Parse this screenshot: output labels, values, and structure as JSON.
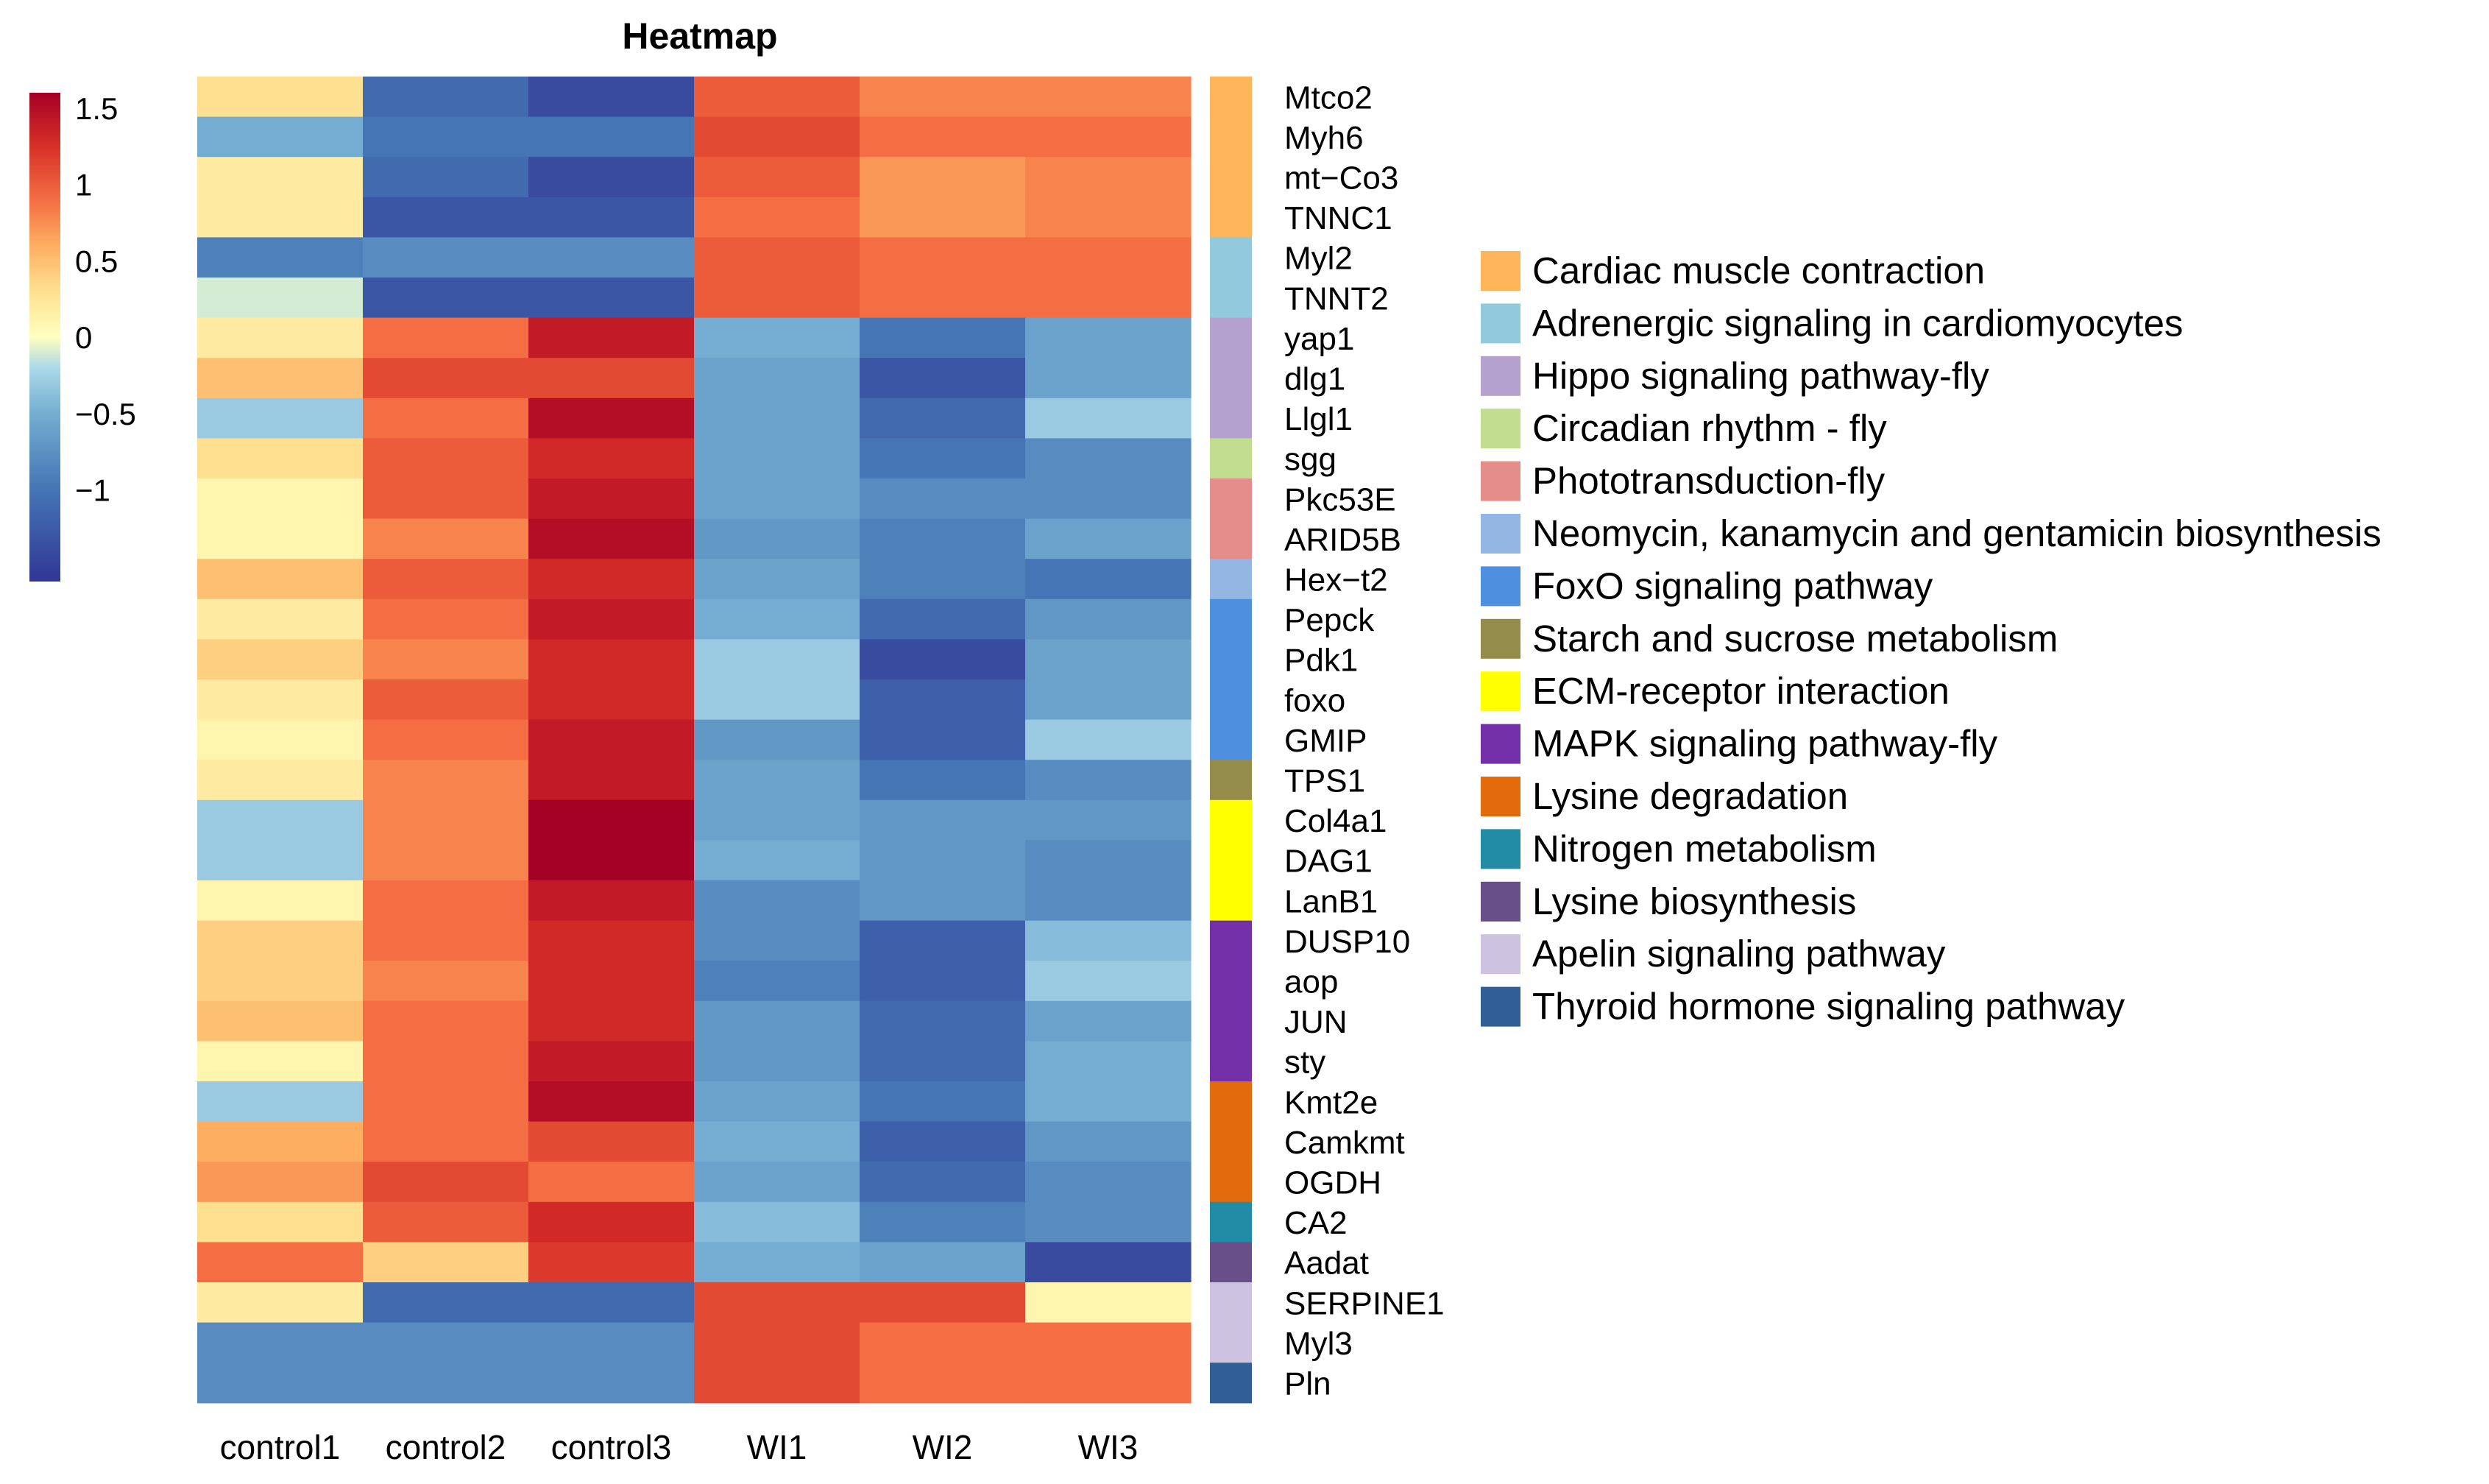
{
  "chart_data": {
    "type": "heatmap",
    "title": "Heatmap",
    "columns": [
      "control1",
      "control2",
      "control3",
      "WI1",
      "WI2",
      "WI3"
    ],
    "rows": [
      "Mtco2",
      "Myh6",
      "mt−Co3",
      "TNNC1",
      "Myl2",
      "TNNT2",
      "yap1",
      "dlg1",
      "Llgl1",
      "sgg",
      "Pkc53E",
      "ARID5B",
      "Hex−t2",
      "Pepck",
      "Pdk1",
      "foxo",
      "GMIP",
      "TPS1",
      "Col4a1",
      "DAG1",
      "LanB1",
      "DUSP10",
      "aop",
      "JUN",
      "sty",
      "Kmt2e",
      "Camkmt",
      "OGDH",
      "CA2",
      "Aadat",
      "SERPINE1",
      "Myl3",
      "Pln"
    ],
    "row_pathway_index": [
      0,
      0,
      0,
      0,
      1,
      1,
      2,
      2,
      2,
      3,
      4,
      4,
      5,
      6,
      6,
      6,
      6,
      7,
      8,
      8,
      8,
      9,
      9,
      9,
      9,
      10,
      10,
      10,
      11,
      12,
      13,
      13,
      14
    ],
    "values": [
      [
        0.3,
        -1.1,
        -1.4,
        1.0,
        0.8,
        0.8
      ],
      [
        -0.5,
        -1.0,
        -1.0,
        1.1,
        0.9,
        0.9
      ],
      [
        0.2,
        -1.1,
        -1.4,
        1.0,
        0.7,
        0.8
      ],
      [
        0.2,
        -1.3,
        -1.3,
        0.9,
        0.7,
        0.8
      ],
      [
        -0.9,
        -0.8,
        -0.8,
        1.0,
        0.9,
        0.9
      ],
      [
        -0.1,
        -1.3,
        -1.3,
        1.0,
        0.9,
        0.9
      ],
      [
        0.2,
        0.9,
        1.4,
        -0.5,
        -1.0,
        -0.6
      ],
      [
        0.5,
        1.1,
        1.1,
        -0.6,
        -1.3,
        -0.6
      ],
      [
        -0.3,
        0.9,
        1.5,
        -0.6,
        -1.1,
        -0.3
      ],
      [
        0.3,
        1.0,
        1.3,
        -0.6,
        -1.0,
        -0.8
      ],
      [
        0.1,
        1.0,
        1.4,
        -0.6,
        -0.8,
        -0.8
      ],
      [
        0.1,
        0.8,
        1.5,
        -0.7,
        -0.9,
        -0.6
      ],
      [
        0.5,
        1.0,
        1.3,
        -0.6,
        -0.9,
        -1.0
      ],
      [
        0.2,
        0.9,
        1.4,
        -0.5,
        -1.1,
        -0.7
      ],
      [
        0.4,
        0.8,
        1.3,
        -0.3,
        -1.4,
        -0.6
      ],
      [
        0.2,
        1.0,
        1.3,
        -0.3,
        -1.2,
        -0.6
      ],
      [
        0.1,
        0.9,
        1.4,
        -0.7,
        -1.2,
        -0.3
      ],
      [
        0.2,
        0.8,
        1.4,
        -0.6,
        -1.0,
        -0.8
      ],
      [
        -0.3,
        0.8,
        1.6,
        -0.6,
        -0.7,
        -0.7
      ],
      [
        -0.3,
        0.8,
        1.6,
        -0.5,
        -0.7,
        -0.8
      ],
      [
        0.1,
        0.9,
        1.4,
        -0.8,
        -0.7,
        -0.8
      ],
      [
        0.4,
        0.9,
        1.3,
        -0.8,
        -1.2,
        -0.4
      ],
      [
        0.4,
        0.8,
        1.3,
        -0.9,
        -1.2,
        -0.3
      ],
      [
        0.5,
        0.9,
        1.3,
        -0.7,
        -1.1,
        -0.6
      ],
      [
        0.1,
        0.9,
        1.4,
        -0.7,
        -1.1,
        -0.5
      ],
      [
        -0.3,
        0.9,
        1.5,
        -0.6,
        -1.0,
        -0.5
      ],
      [
        0.6,
        0.9,
        1.1,
        -0.5,
        -1.2,
        -0.7
      ],
      [
        0.7,
        1.1,
        0.9,
        -0.6,
        -1.1,
        -0.8
      ],
      [
        0.3,
        1.0,
        1.3,
        -0.4,
        -0.9,
        -0.8
      ],
      [
        0.9,
        0.4,
        1.2,
        -0.5,
        -0.6,
        -1.4
      ],
      [
        0.2,
        -1.1,
        -1.1,
        1.1,
        1.1,
        0.1
      ],
      [
        -0.8,
        -0.8,
        -0.8,
        1.1,
        0.9,
        0.9
      ],
      [
        -0.8,
        -0.8,
        -0.8,
        1.1,
        0.9,
        0.9
      ]
    ],
    "color_scale": {
      "ticks": [
        "1.5",
        "1",
        "0.5",
        "0",
        "−0.5",
        "−1"
      ],
      "tick_values": [
        1.5,
        1.0,
        0.5,
        0.0,
        -0.5,
        -1.0
      ],
      "range": [
        -1.6,
        1.6
      ],
      "stops": [
        {
          "v": -1.6,
          "color": "#313695"
        },
        {
          "v": -1.0,
          "color": "#4575b4"
        },
        {
          "v": -0.5,
          "color": "#74add1"
        },
        {
          "v": -0.2,
          "color": "#abd9e9"
        },
        {
          "v": 0.0,
          "color": "#ffffbf"
        },
        {
          "v": 0.3,
          "color": "#fee090"
        },
        {
          "v": 0.6,
          "color": "#fdae61"
        },
        {
          "v": 0.9,
          "color": "#f46d43"
        },
        {
          "v": 1.25,
          "color": "#d73027"
        },
        {
          "v": 1.6,
          "color": "#a50026"
        }
      ]
    },
    "pathways": [
      {
        "name": "Cardiac muscle contraction",
        "color": "#ffb55a"
      },
      {
        "name": "Adrenergic signaling in cardiomyocytes",
        "color": "#92c9dc"
      },
      {
        "name": "Hippo signaling pathway-fly",
        "color": "#b4a1cf"
      },
      {
        "name": "Circadian rhythm - fly",
        "color": "#c1dd8f"
      },
      {
        "name": "Phototransduction-fly",
        "color": "#e58d8a"
      },
      {
        "name": "Neomycin, kanamycin and gentamicin biosynthesis",
        "color": "#93b6e3"
      },
      {
        "name": " FoxO signaling pathway",
        "color": "#4e8fe0"
      },
      {
        "name": "Starch and sucrose metabolism",
        "color": "#938c4a"
      },
      {
        "name": "ECM-receptor interaction",
        "color": "#ffff00"
      },
      {
        "name": "MAPK signaling pathway-fly",
        "color": "#7430a8"
      },
      {
        "name": "Lysine degradation",
        "color": "#e46b0c"
      },
      {
        "name": "Nitrogen metabolism",
        "color": "#228ba5"
      },
      {
        "name": "Lysine biosynthesis",
        "color": "#694f8a"
      },
      {
        "name": "Apelin signaling pathway",
        "color": "#cdc2e0"
      },
      {
        "name": "Thyroid hormone signaling pathway",
        "color": "#325e97"
      }
    ]
  }
}
